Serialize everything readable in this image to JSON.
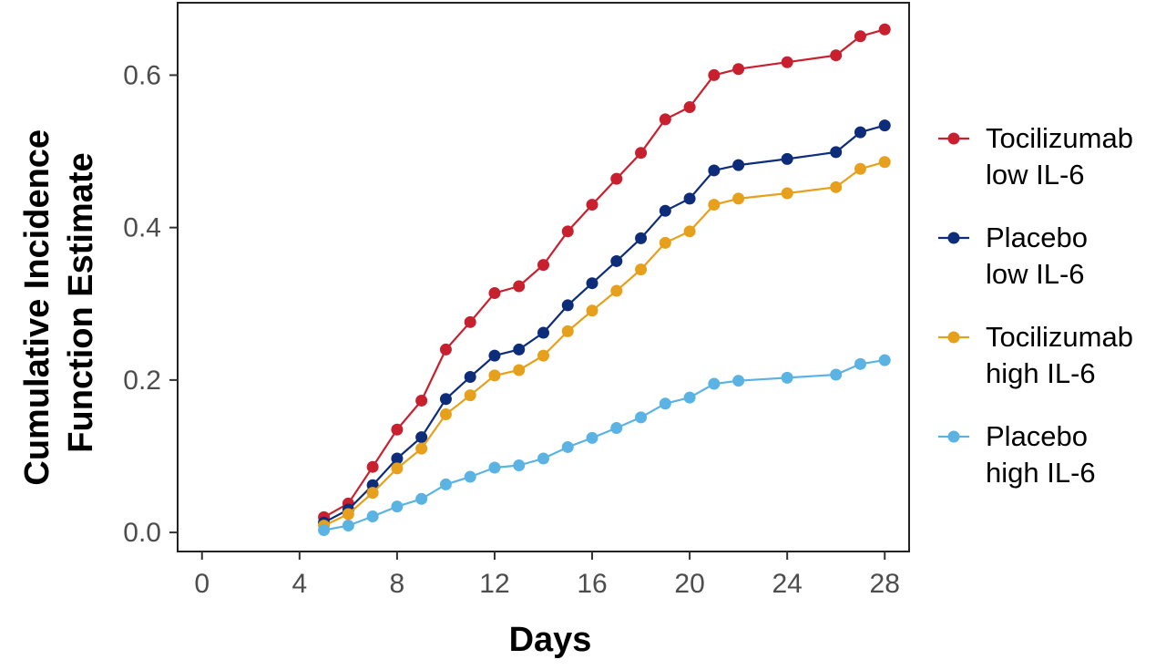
{
  "chart_data": {
    "type": "line",
    "title": "",
    "xlabel": "Days",
    "ylabel_lines": [
      "Cumulative Incidence",
      "Function Estimate"
    ],
    "xlim": [
      -1,
      29
    ],
    "ylim": [
      -0.025,
      0.695
    ],
    "x_ticks": [
      0,
      4,
      8,
      12,
      16,
      20,
      24,
      28
    ],
    "y_ticks": [
      0.0,
      0.2,
      0.4,
      0.6
    ],
    "y_tick_labels": [
      "0.0",
      "0.2",
      "0.4",
      "0.6"
    ],
    "grid": false,
    "legend_position": "right",
    "x": [
      5,
      6,
      7,
      8,
      9,
      10,
      11,
      12,
      13,
      14,
      15,
      16,
      17,
      18,
      19,
      20,
      21,
      22,
      24,
      26,
      27,
      28
    ],
    "series": [
      {
        "name_lines": [
          "Tocilizumab",
          "low IL-6"
        ],
        "color": "#c8202f",
        "values": [
          0.02,
          0.038,
          0.086,
          0.135,
          0.173,
          0.24,
          0.276,
          0.314,
          0.323,
          0.351,
          0.395,
          0.43,
          0.464,
          0.498,
          0.542,
          0.558,
          0.6,
          0.608,
          0.617,
          0.626,
          0.651,
          0.66
        ]
      },
      {
        "name_lines": [
          "Placebo",
          "low IL-6"
        ],
        "color": "#0d2d7a",
        "values": [
          0.013,
          0.03,
          0.062,
          0.097,
          0.125,
          0.175,
          0.204,
          0.232,
          0.24,
          0.262,
          0.298,
          0.327,
          0.356,
          0.386,
          0.422,
          0.438,
          0.475,
          0.482,
          0.49,
          0.499,
          0.525,
          0.534
        ]
      },
      {
        "name_lines": [
          "Tocilizumab",
          "high IL-6"
        ],
        "color": "#e6a01c",
        "values": [
          0.009,
          0.024,
          0.052,
          0.084,
          0.11,
          0.155,
          0.18,
          0.206,
          0.213,
          0.232,
          0.264,
          0.291,
          0.317,
          0.345,
          0.38,
          0.395,
          0.43,
          0.438,
          0.445,
          0.453,
          0.477,
          0.486
        ]
      },
      {
        "name_lines": [
          "Placebo",
          "high IL-6"
        ],
        "color": "#5ab3e3",
        "values": [
          0.003,
          0.009,
          0.021,
          0.034,
          0.044,
          0.063,
          0.073,
          0.085,
          0.088,
          0.097,
          0.112,
          0.124,
          0.137,
          0.151,
          0.169,
          0.177,
          0.195,
          0.199,
          0.203,
          0.207,
          0.221,
          0.226
        ]
      }
    ]
  }
}
